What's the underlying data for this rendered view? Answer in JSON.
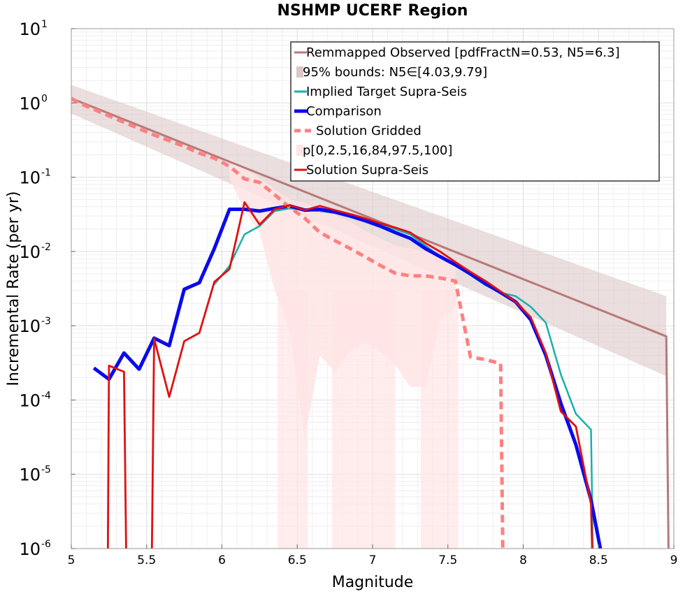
{
  "chart_data": {
    "type": "line",
    "title": "NSHMP UCERF Region",
    "xlabel": "Magnitude",
    "ylabel": "Incremental Rate (per yr)",
    "xlim": [
      5,
      9
    ],
    "ylim_exp": [
      -6,
      1
    ],
    "y_log_scale": true,
    "x_ticks": [
      5,
      5.5,
      6,
      6.5,
      7,
      7.5,
      8,
      8.5,
      9
    ],
    "x_tick_labels": [
      "5",
      "5.5",
      "6",
      "6.5",
      "7",
      "7.5",
      "8",
      "8.5",
      "9"
    ],
    "y_tick_exponents": [
      -6,
      -5,
      -4,
      -3,
      -2,
      -1,
      0,
      1
    ],
    "y_tick_base": "10",
    "y_tick_exponent_labels": [
      "-6",
      "-5",
      "-4",
      "-3",
      "-2",
      "-1",
      "0",
      "1"
    ],
    "grid": true,
    "legend_position": "top-right",
    "legend": [
      {
        "label": "Remmapped Observed [pdfFractN=0.53, N5=6.3]",
        "color": "#b87878",
        "style": "line"
      },
      {
        "label": "95% bounds: N5∈[4.03,9.79]",
        "color": "#dcc8c8",
        "style": "patch"
      },
      {
        "label": "Implied Target Supra-Seis",
        "color": "#19b0aa",
        "style": "line"
      },
      {
        "label": "Comparison",
        "color": "#0a0aee",
        "style": "thick"
      },
      {
        "label": "Solution Gridded",
        "color": "#ff8080",
        "style": "dashed"
      },
      {
        "label": "p[0,2.5,16,84,97.5,100]",
        "color": "#ffe4e4",
        "style": "patch"
      },
      {
        "label": "Solution Supra-Seis",
        "color": "#e01010",
        "style": "line"
      }
    ],
    "bounds_band": {
      "name": "95% bounds: N5∈[4.03,9.79]",
      "color": "#dcc8c8",
      "x": [
        5.0,
        8.95
      ],
      "lower": [
        0.72,
        0.00021
      ],
      "upper": [
        1.75,
        0.0025
      ]
    },
    "series": [
      {
        "name": "Remmapped Observed [pdfFractN=0.53, N5=6.3]",
        "color": "#b87878",
        "x": [
          5.0,
          8.95,
          8.97
        ],
        "y": [
          1.15,
          0.00072,
          1e-07
        ]
      },
      {
        "name": "Implied Target Supra-Seis",
        "color": "#19b0aa",
        "x": [
          5.95,
          6.05,
          6.15,
          6.25,
          6.35,
          6.45,
          6.55,
          6.65,
          6.75,
          6.85,
          6.95,
          7.05,
          7.15,
          7.25,
          7.35,
          7.45,
          7.55,
          7.65,
          7.75,
          7.85,
          7.95,
          8.05,
          8.15,
          8.25,
          8.35,
          8.45,
          8.47
        ],
        "y": [
          0.0036,
          0.0064,
          0.017,
          0.022,
          0.035,
          0.038,
          0.036,
          0.035,
          0.033,
          0.03,
          0.026,
          0.023,
          0.02,
          0.017,
          0.012,
          0.0085,
          0.0065,
          0.0048,
          0.0035,
          0.0028,
          0.0025,
          0.0018,
          0.0011,
          0.00022,
          6.5e-05,
          4e-05,
          1e-07
        ]
      },
      {
        "name": "Comparison",
        "color": "#0a0aee",
        "x": [
          5.15,
          5.25,
          5.35,
          5.45,
          5.55,
          5.65,
          5.75,
          5.85,
          5.95,
          6.05,
          6.15,
          6.25,
          6.35,
          6.45,
          6.55,
          6.65,
          6.75,
          6.85,
          6.95,
          7.05,
          7.15,
          7.25,
          7.35,
          7.45,
          7.55,
          7.65,
          7.75,
          7.85,
          7.95,
          8.05,
          8.15,
          8.25,
          8.35,
          8.45,
          8.55
        ],
        "y": [
          0.00027,
          0.00019,
          0.00043,
          0.00026,
          0.00068,
          0.00054,
          0.0031,
          0.0038,
          0.011,
          0.037,
          0.037,
          0.035,
          0.038,
          0.041,
          0.036,
          0.037,
          0.034,
          0.03,
          0.026,
          0.022,
          0.018,
          0.015,
          0.011,
          0.0085,
          0.0066,
          0.005,
          0.0037,
          0.0028,
          0.0021,
          0.0012,
          0.0004,
          9e-05,
          2.5e-05,
          4.5e-06,
          4e-07
        ]
      },
      {
        "name": "Solution Gridded",
        "color": "#ff8080",
        "x": [
          5.0,
          5.05,
          5.15,
          5.25,
          5.35,
          5.45,
          5.55,
          5.65,
          5.75,
          5.85,
          5.95,
          6.05,
          6.15,
          6.25,
          6.35,
          6.45,
          6.55,
          6.65,
          6.75,
          6.85,
          6.95,
          7.05,
          7.15,
          7.25,
          7.35,
          7.45,
          7.55,
          7.65,
          7.75,
          7.85,
          7.87
        ],
        "y": [
          1.15,
          1.0,
          0.82,
          0.67,
          0.55,
          0.45,
          0.37,
          0.31,
          0.26,
          0.21,
          0.18,
          0.14,
          0.095,
          0.085,
          0.058,
          0.039,
          0.028,
          0.018,
          0.014,
          0.011,
          0.0085,
          0.0065,
          0.0051,
          0.0047,
          0.0047,
          0.0044,
          0.004,
          0.00038,
          0.00035,
          0.00031,
          1e-07
        ]
      },
      {
        "name": "Solution Supra-Seis",
        "color": "#e01010",
        "x": [
          5.22,
          5.24,
          5.25,
          5.35,
          5.37,
          5.53,
          5.55,
          5.65,
          5.75,
          5.85,
          5.95,
          6.05,
          6.15,
          6.25,
          6.35,
          6.45,
          6.55,
          6.65,
          6.75,
          6.85,
          6.95,
          7.05,
          7.15,
          7.25,
          7.35,
          7.45,
          7.55,
          7.65,
          7.75,
          7.85,
          7.95,
          8.05,
          8.15,
          8.25,
          8.35,
          8.45,
          8.47
        ],
        "y": [
          1e-07,
          1e-07,
          0.00029,
          0.00024,
          1e-07,
          1e-07,
          0.00067,
          0.00011,
          0.00062,
          0.0008,
          0.0039,
          0.0058,
          0.046,
          0.023,
          0.037,
          0.042,
          0.036,
          0.041,
          0.036,
          0.032,
          0.028,
          0.024,
          0.021,
          0.018,
          0.013,
          0.0099,
          0.0072,
          0.0053,
          0.004,
          0.0029,
          0.0021,
          0.0013,
          0.00043,
          7e-05,
          4.4e-05,
          4e-06,
          1e-07
        ]
      }
    ],
    "percentile_bands": {
      "name": "p[0,2.5,16,84,97.5,100]",
      "color": "#ffe4e4",
      "x": [
        6.05,
        6.15,
        6.25,
        6.35,
        6.45,
        6.55,
        6.65,
        6.75,
        6.85,
        6.95,
        7.05,
        7.15,
        7.25,
        7.35,
        7.45,
        7.55
      ],
      "lower": [
        0.095,
        0.036,
        0.018,
        0.003,
        0.0009,
        3e-05,
        0.0004,
        0.00024,
        0.00045,
        0.0006,
        0.00045,
        0.0003,
        0.00015,
        0.00015,
        0.0012,
        0.0018
      ],
      "upper": [
        0.18,
        0.13,
        0.098,
        0.069,
        0.05,
        0.045,
        0.037,
        0.031,
        0.025,
        0.019,
        0.015,
        0.012,
        0.011,
        0.01,
        0.0085,
        0.0065
      ]
    },
    "min_percentile_columns": {
      "color": "#ffe4e4",
      "x_ranges": [
        [
          6.37,
          6.57
        ],
        [
          6.73,
          7.15
        ],
        [
          7.32,
          7.57
        ]
      ]
    }
  }
}
